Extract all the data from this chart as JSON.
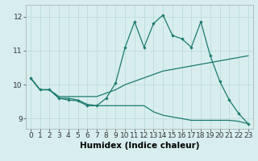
{
  "xlabel": "Humidex (Indice chaleur)",
  "xlim": [
    -0.5,
    23.5
  ],
  "ylim": [
    8.7,
    12.35
  ],
  "bg_color": "#d8eeee",
  "line_color": "#1a7a6e",
  "grid_color": "#b8d8d8",
  "line1": {
    "x": [
      0,
      1,
      2,
      3,
      4,
      5,
      6,
      7,
      8,
      9,
      10,
      11,
      12,
      13,
      14,
      15,
      16,
      17,
      18,
      19,
      20,
      21,
      22,
      23
    ],
    "y": [
      10.2,
      9.85,
      9.85,
      9.6,
      9.6,
      9.55,
      9.42,
      9.38,
      9.38,
      9.38,
      9.38,
      9.38,
      9.38,
      9.2,
      9.1,
      9.05,
      9.0,
      8.95,
      8.95,
      8.95,
      8.95,
      8.95,
      8.92,
      8.85
    ]
  },
  "line2": {
    "x": [
      0,
      1,
      2,
      3,
      4,
      5,
      6,
      7,
      8,
      9,
      10,
      11,
      12,
      13,
      14,
      15,
      16,
      17,
      18,
      19,
      20,
      21,
      22,
      23
    ],
    "y": [
      10.2,
      9.85,
      9.85,
      9.65,
      9.65,
      9.65,
      9.65,
      9.65,
      9.75,
      9.85,
      10.0,
      10.1,
      10.2,
      10.3,
      10.4,
      10.45,
      10.5,
      10.55,
      10.6,
      10.65,
      10.7,
      10.75,
      10.8,
      10.85
    ]
  },
  "line3": {
    "x": [
      0,
      1,
      2,
      3,
      4,
      5,
      6,
      7,
      8,
      9,
      10,
      11,
      12,
      13,
      14,
      15,
      16,
      17,
      18,
      19,
      20,
      21,
      22,
      23
    ],
    "y": [
      10.2,
      9.85,
      9.85,
      9.6,
      9.55,
      9.52,
      9.38,
      9.38,
      9.6,
      10.05,
      11.1,
      11.85,
      11.1,
      11.8,
      12.05,
      11.45,
      11.35,
      11.1,
      11.85,
      10.85,
      10.1,
      9.55,
      9.15,
      8.85
    ]
  },
  "xtick_labels": [
    "0",
    "1",
    "2",
    "3",
    "4",
    "5",
    "6",
    "7",
    "8",
    "9",
    "10",
    "11",
    "12",
    "13",
    "14",
    "15",
    "16",
    "17",
    "18",
    "19",
    "20",
    "21",
    "22",
    "23"
  ],
  "ytick_values": [
    9,
    10,
    11,
    12
  ],
  "tick_fontsize": 6.5,
  "label_fontsize": 7.5
}
